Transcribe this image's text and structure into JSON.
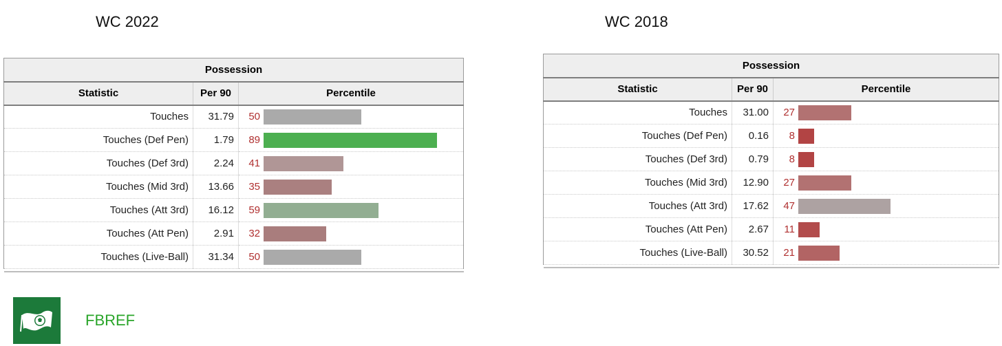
{
  "left": {
    "title": "WC 2022",
    "caption": "Possession",
    "headers": [
      "Statistic",
      "Per 90",
      "Percentile"
    ],
    "rows": [
      {
        "stat": "Touches",
        "per90": "31.79",
        "pct": "50",
        "pct_value": 50,
        "color": "#aaaaaa"
      },
      {
        "stat": "Touches (Def Pen)",
        "per90": "1.79",
        "pct": "89",
        "pct_value": 89,
        "color": "#4caf50"
      },
      {
        "stat": "Touches (Def 3rd)",
        "per90": "2.24",
        "pct": "41",
        "pct_value": 41,
        "color": "#b09696"
      },
      {
        "stat": "Touches (Mid 3rd)",
        "per90": "13.66",
        "pct": "35",
        "pct_value": 35,
        "color": "#aa8080"
      },
      {
        "stat": "Touches (Att 3rd)",
        "per90": "16.12",
        "pct": "59",
        "pct_value": 59,
        "color": "#92ae92"
      },
      {
        "stat": "Touches (Att Pen)",
        "per90": "2.91",
        "pct": "32",
        "pct_value": 32,
        "color": "#a97d7d"
      },
      {
        "stat": "Touches (Live-Ball)",
        "per90": "31.34",
        "pct": "50",
        "pct_value": 50,
        "color": "#aaaaaa"
      }
    ]
  },
  "right": {
    "title": "WC 2018",
    "caption": "Possession",
    "headers": [
      "Statistic",
      "Per 90",
      "Percentile"
    ],
    "rows": [
      {
        "stat": "Touches",
        "per90": "31.00",
        "pct": "27",
        "pct_value": 27,
        "color": "#b27272"
      },
      {
        "stat": "Touches (Def Pen)",
        "per90": "0.16",
        "pct": "8",
        "pct_value": 8,
        "color": "#b24444"
      },
      {
        "stat": "Touches (Def 3rd)",
        "per90": "0.79",
        "pct": "8",
        "pct_value": 8,
        "color": "#b24444"
      },
      {
        "stat": "Touches (Mid 3rd)",
        "per90": "12.90",
        "pct": "27",
        "pct_value": 27,
        "color": "#b27272"
      },
      {
        "stat": "Touches (Att 3rd)",
        "per90": "17.62",
        "pct": "47",
        "pct_value": 47,
        "color": "#ada2a2"
      },
      {
        "stat": "Touches (Att Pen)",
        "per90": "2.67",
        "pct": "11",
        "pct_value": 11,
        "color": "#b24c4c"
      },
      {
        "stat": "Touches (Live-Ball)",
        "per90": "30.52",
        "pct": "21",
        "pct_value": 21,
        "color": "#b26464"
      }
    ]
  },
  "footer": {
    "brand": "FBREF",
    "logo_icon": "soccer-flag-icon",
    "logo_color": "#1c7a3a",
    "brand_color": "#2aa52a"
  },
  "chart_data": [
    {
      "type": "bar",
      "title": "WC 2022",
      "categories": [
        "Touches",
        "Touches (Def Pen)",
        "Touches (Def 3rd)",
        "Touches (Mid 3rd)",
        "Touches (Att 3rd)",
        "Touches (Att Pen)",
        "Touches (Live-Ball)"
      ],
      "series": [
        {
          "name": "Per 90",
          "values": [
            31.79,
            1.79,
            2.24,
            13.66,
            16.12,
            2.91,
            31.34
          ]
        },
        {
          "name": "Percentile",
          "values": [
            50,
            89,
            41,
            35,
            59,
            32,
            50
          ]
        }
      ],
      "ylim": [
        0,
        100
      ]
    },
    {
      "type": "bar",
      "title": "WC 2018",
      "categories": [
        "Touches",
        "Touches (Def Pen)",
        "Touches (Def 3rd)",
        "Touches (Mid 3rd)",
        "Touches (Att 3rd)",
        "Touches (Att Pen)",
        "Touches (Live-Ball)"
      ],
      "series": [
        {
          "name": "Per 90",
          "values": [
            31.0,
            0.16,
            0.79,
            12.9,
            17.62,
            2.67,
            30.52
          ]
        },
        {
          "name": "Percentile",
          "values": [
            27,
            8,
            8,
            27,
            47,
            11,
            21
          ]
        }
      ],
      "ylim": [
        0,
        100
      ]
    }
  ]
}
